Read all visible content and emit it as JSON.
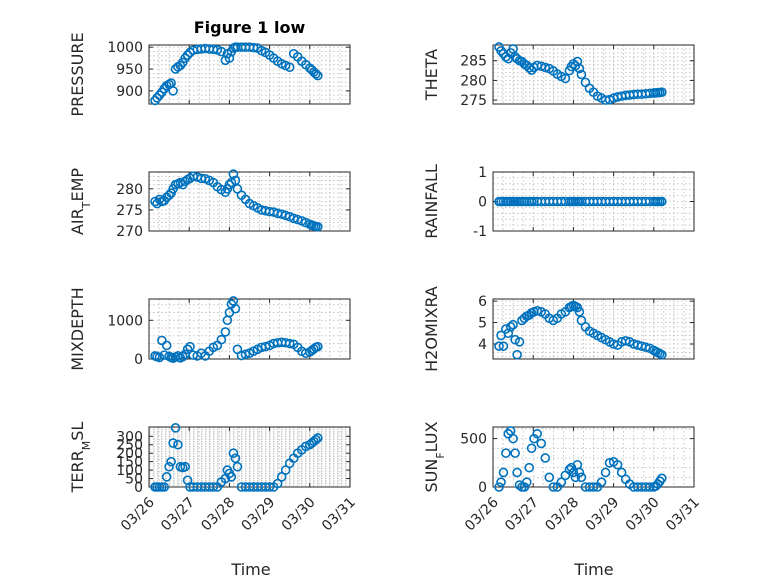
{
  "chart_data": [
    {
      "type": "scatter",
      "title": "Figure 1 low",
      "ylabel": "PRESSURE",
      "ylim": [
        870,
        1005
      ],
      "yticks": [
        900,
        950,
        1000
      ],
      "xlim": [
        0,
        5
      ],
      "xticks": [
        0,
        1,
        2,
        3,
        4,
        5
      ],
      "xticklabels": [
        "03/26",
        "03/27",
        "03/28",
        "03/29",
        "03/30",
        "03/31"
      ],
      "grid": true,
      "x": [
        0.15,
        0.2,
        0.26,
        0.32,
        0.38,
        0.44,
        0.5,
        0.55,
        0.6,
        0.66,
        0.72,
        0.78,
        0.84,
        0.9,
        0.96,
        1.02,
        1.1,
        1.2,
        1.3,
        1.4,
        1.5,
        1.6,
        1.7,
        1.8,
        1.9,
        1.95,
        2.0,
        2.05,
        2.1,
        2.15,
        2.2,
        2.3,
        2.4,
        2.5,
        2.6,
        2.7,
        2.8,
        2.9,
        3.0,
        3.1,
        3.2,
        3.3,
        3.4,
        3.5,
        3.6,
        3.7,
        3.8,
        3.9,
        4.0,
        4.05,
        4.1,
        4.15,
        4.2
      ],
      "values": [
        878,
        884,
        890,
        897,
        905,
        912,
        915,
        918,
        900,
        950,
        955,
        958,
        965,
        975,
        982,
        988,
        993,
        995,
        996,
        997,
        996,
        995,
        994,
        990,
        970,
        985,
        975,
        990,
        998,
        1000,
        1000,
        1000,
        1000,
        1000,
        999,
        998,
        992,
        988,
        982,
        975,
        968,
        962,
        958,
        954,
        985,
        978,
        968,
        960,
        952,
        948,
        943,
        939,
        935
      ],
      "color": "#0072bd"
    },
    {
      "type": "scatter",
      "title": "",
      "ylabel": "THETA",
      "ylim": [
        274,
        289
      ],
      "yticks": [
        275,
        280,
        285
      ],
      "xlim": [
        0,
        5
      ],
      "xticks": [
        0,
        1,
        2,
        3,
        4,
        5
      ],
      "xticklabels": [
        "03/26",
        "03/27",
        "03/28",
        "03/29",
        "03/30",
        "03/31"
      ],
      "grid": true,
      "x": [
        0.15,
        0.2,
        0.26,
        0.32,
        0.38,
        0.44,
        0.5,
        0.55,
        0.6,
        0.66,
        0.72,
        0.78,
        0.84,
        0.9,
        0.96,
        1.02,
        1.1,
        1.2,
        1.3,
        1.4,
        1.5,
        1.6,
        1.7,
        1.8,
        1.9,
        1.95,
        2.0,
        2.05,
        2.1,
        2.15,
        2.2,
        2.3,
        2.4,
        2.5,
        2.6,
        2.7,
        2.8,
        2.9,
        3.0,
        3.1,
        3.2,
        3.3,
        3.4,
        3.5,
        3.6,
        3.7,
        3.8,
        3.9,
        4.0,
        4.05,
        4.1,
        4.15,
        4.2
      ],
      "values": [
        288.5,
        287.5,
        286.8,
        286,
        285.5,
        287,
        288,
        286,
        285.5,
        285,
        284.8,
        284.2,
        283.8,
        283.2,
        282.6,
        283.3,
        283.8,
        283.6,
        283.3,
        283,
        282.4,
        281.6,
        281,
        280.5,
        282.5,
        283.5,
        284.2,
        283.7,
        284.8,
        283,
        281.5,
        279.5,
        278,
        277,
        276,
        275.5,
        275,
        275.1,
        275.5,
        275.8,
        276,
        276.2,
        276.3,
        276.4,
        276.5,
        276.5,
        276.6,
        276.7,
        276.8,
        276.8,
        276.9,
        276.9,
        277
      ],
      "color": "#0072bd"
    },
    {
      "type": "scatter",
      "title": "",
      "ylabel": "AIR_TEMP",
      "ylim": [
        270,
        284
      ],
      "yticks": [
        270,
        275,
        280
      ],
      "xlim": [
        0,
        5
      ],
      "xticks": [
        0,
        1,
        2,
        3,
        4,
        5
      ],
      "xticklabels": [
        "03/26",
        "03/27",
        "03/28",
        "03/29",
        "03/30",
        "03/31"
      ],
      "grid": true,
      "x": [
        0.15,
        0.2,
        0.26,
        0.32,
        0.38,
        0.44,
        0.5,
        0.55,
        0.6,
        0.66,
        0.72,
        0.78,
        0.84,
        0.9,
        0.96,
        1.02,
        1.1,
        1.2,
        1.3,
        1.4,
        1.5,
        1.6,
        1.7,
        1.8,
        1.9,
        1.95,
        2.0,
        2.05,
        2.1,
        2.15,
        2.2,
        2.3,
        2.4,
        2.5,
        2.6,
        2.7,
        2.8,
        2.9,
        3.0,
        3.1,
        3.2,
        3.3,
        3.4,
        3.5,
        3.6,
        3.7,
        3.8,
        3.9,
        4.0,
        4.05,
        4.1,
        4.15,
        4.2
      ],
      "values": [
        277,
        276.5,
        277.5,
        277,
        277.2,
        278,
        278.5,
        279,
        280,
        281,
        281.2,
        281.5,
        281,
        281.8,
        282.2,
        282.5,
        283,
        282.8,
        282.5,
        282.4,
        282,
        281.5,
        280.5,
        279.8,
        279.2,
        280,
        281,
        281.5,
        283.5,
        282,
        280,
        278.5,
        277.5,
        276.5,
        276,
        275.5,
        275,
        274.8,
        274.6,
        274.5,
        274.2,
        274,
        273.7,
        273.4,
        273,
        272.7,
        272.4,
        272,
        271.6,
        271.4,
        271.2,
        271.1,
        271
      ],
      "color": "#0072bd"
    },
    {
      "type": "scatter",
      "title": "",
      "ylabel": "RAINFALL",
      "ylim": [
        -1,
        1
      ],
      "yticks": [
        -1,
        0,
        1
      ],
      "xlim": [
        0,
        5
      ],
      "xticks": [
        0,
        1,
        2,
        3,
        4,
        5
      ],
      "xticklabels": [
        "03/26",
        "03/27",
        "03/28",
        "03/29",
        "03/30",
        "03/31"
      ],
      "grid": true,
      "x": [
        0.15,
        0.2,
        0.26,
        0.32,
        0.38,
        0.44,
        0.5,
        0.55,
        0.6,
        0.66,
        0.72,
        0.78,
        0.84,
        0.9,
        0.96,
        1.02,
        1.1,
        1.2,
        1.3,
        1.4,
        1.5,
        1.6,
        1.7,
        1.8,
        1.9,
        1.95,
        2.0,
        2.05,
        2.1,
        2.15,
        2.2,
        2.3,
        2.4,
        2.5,
        2.6,
        2.7,
        2.8,
        2.9,
        3.0,
        3.1,
        3.2,
        3.3,
        3.4,
        3.5,
        3.6,
        3.7,
        3.8,
        3.9,
        4.0,
        4.05,
        4.1,
        4.15,
        4.2
      ],
      "values": [
        0,
        0,
        0,
        0,
        0,
        0,
        0,
        0,
        0,
        0,
        0,
        0,
        0,
        0,
        0,
        0,
        0,
        0,
        0,
        0,
        0,
        0,
        0,
        0,
        0,
        0,
        0,
        0,
        0,
        0,
        0,
        0,
        0,
        0,
        0,
        0,
        0,
        0,
        0,
        0,
        0,
        0,
        0,
        0,
        0,
        0,
        0,
        0,
        0,
        0,
        0,
        0,
        0
      ],
      "color": "#0072bd"
    },
    {
      "type": "scatter",
      "title": "",
      "ylabel": "MIXDEPTH",
      "ylim": [
        0,
        1550
      ],
      "yticks": [
        0,
        1000
      ],
      "xlim": [
        0,
        5
      ],
      "xticks": [
        0,
        1,
        2,
        3,
        4,
        5
      ],
      "xticklabels": [
        "03/26",
        "03/27",
        "03/28",
        "03/29",
        "03/30",
        "03/31"
      ],
      "grid": true,
      "x": [
        0.15,
        0.2,
        0.26,
        0.32,
        0.38,
        0.44,
        0.5,
        0.55,
        0.6,
        0.66,
        0.72,
        0.78,
        0.84,
        0.9,
        0.96,
        1.02,
        1.1,
        1.2,
        1.3,
        1.4,
        1.5,
        1.6,
        1.7,
        1.8,
        1.9,
        1.95,
        2.0,
        2.05,
        2.1,
        2.15,
        2.2,
        2.3,
        2.4,
        2.5,
        2.6,
        2.7,
        2.8,
        2.9,
        3.0,
        3.1,
        3.2,
        3.3,
        3.4,
        3.5,
        3.6,
        3.7,
        3.8,
        3.9,
        4.0,
        4.05,
        4.1,
        4.15,
        4.2
      ],
      "values": [
        80,
        60,
        40,
        480,
        100,
        350,
        70,
        40,
        20,
        50,
        80,
        30,
        60,
        120,
        250,
        320,
        100,
        80,
        150,
        80,
        200,
        300,
        350,
        500,
        700,
        1000,
        1200,
        1420,
        1500,
        1300,
        250,
        90,
        120,
        150,
        200,
        250,
        300,
        320,
        350,
        400,
        420,
        430,
        420,
        400,
        380,
        300,
        200,
        150,
        180,
        220,
        260,
        300,
        320
      ],
      "color": "#0072bd"
    },
    {
      "type": "scatter",
      "title": "",
      "ylabel": "H2OMIXRA",
      "ylim": [
        3.3,
        6.1
      ],
      "yticks": [
        4,
        5,
        6
      ],
      "xlim": [
        0,
        5
      ],
      "xticks": [
        0,
        1,
        2,
        3,
        4,
        5
      ],
      "xticklabels": [
        "03/26",
        "03/27",
        "03/28",
        "03/29",
        "03/30",
        "03/31"
      ],
      "grid": true,
      "x": [
        0.15,
        0.2,
        0.26,
        0.32,
        0.38,
        0.44,
        0.5,
        0.55,
        0.6,
        0.66,
        0.72,
        0.78,
        0.84,
        0.9,
        0.96,
        1.02,
        1.1,
        1.2,
        1.3,
        1.4,
        1.5,
        1.6,
        1.7,
        1.8,
        1.9,
        1.95,
        2.0,
        2.05,
        2.1,
        2.15,
        2.2,
        2.3,
        2.4,
        2.5,
        2.6,
        2.7,
        2.8,
        2.9,
        3.0,
        3.1,
        3.2,
        3.3,
        3.4,
        3.5,
        3.6,
        3.7,
        3.8,
        3.9,
        4.0,
        4.05,
        4.1,
        4.15,
        4.2
      ],
      "values": [
        3.9,
        4.4,
        3.9,
        4.7,
        4.5,
        4.8,
        4.9,
        4.2,
        3.5,
        4.1,
        5.1,
        5.2,
        5.3,
        5.35,
        5.45,
        5.5,
        5.55,
        5.5,
        5.4,
        5.2,
        5.1,
        5.2,
        5.4,
        5.5,
        5.7,
        5.75,
        5.8,
        5.75,
        5.7,
        5.5,
        5.1,
        4.8,
        4.6,
        4.5,
        4.4,
        4.3,
        4.2,
        4.1,
        4.0,
        3.95,
        4.1,
        4.15,
        4.1,
        4.0,
        3.95,
        3.9,
        3.85,
        3.8,
        3.7,
        3.65,
        3.6,
        3.55,
        3.5
      ],
      "color": "#0072bd"
    },
    {
      "type": "scatter",
      "title": "",
      "ylabel": "TERR_MSL",
      "ylim": [
        0,
        355
      ],
      "yticks": [
        0,
        50,
        100,
        150,
        200,
        250,
        300
      ],
      "xlim": [
        0,
        5
      ],
      "xticks": [
        0,
        1,
        2,
        3,
        4,
        5
      ],
      "xticklabels": [
        "03/26",
        "03/27",
        "03/28",
        "03/29",
        "03/30",
        "03/31"
      ],
      "grid": true,
      "x": [
        0.15,
        0.2,
        0.26,
        0.32,
        0.38,
        0.44,
        0.5,
        0.55,
        0.6,
        0.66,
        0.72,
        0.78,
        0.84,
        0.9,
        0.96,
        1.02,
        1.1,
        1.2,
        1.3,
        1.4,
        1.5,
        1.6,
        1.7,
        1.8,
        1.9,
        1.95,
        2.0,
        2.05,
        2.1,
        2.15,
        2.2,
        2.3,
        2.4,
        2.5,
        2.6,
        2.7,
        2.8,
        2.9,
        3.0,
        3.1,
        3.2,
        3.3,
        3.4,
        3.5,
        3.6,
        3.7,
        3.8,
        3.9,
        4.0,
        4.05,
        4.1,
        4.15,
        4.2
      ],
      "values": [
        0,
        0,
        0,
        0,
        0,
        60,
        120,
        150,
        260,
        350,
        250,
        120,
        115,
        120,
        40,
        0,
        0,
        0,
        0,
        0,
        0,
        0,
        0,
        30,
        50,
        100,
        80,
        60,
        200,
        170,
        120,
        0,
        0,
        0,
        0,
        0,
        0,
        0,
        0,
        0,
        20,
        60,
        100,
        140,
        170,
        200,
        220,
        240,
        250,
        260,
        270,
        280,
        290
      ],
      "color": "#0072bd"
    },
    {
      "type": "scatter",
      "title": "",
      "ylabel": "SUN_FLUX",
      "ylim": [
        0,
        620
      ],
      "yticks": [
        0,
        500
      ],
      "xlim": [
        0,
        5
      ],
      "xticks": [
        0,
        1,
        2,
        3,
        4,
        5
      ],
      "xticklabels": [
        "03/26",
        "03/27",
        "03/28",
        "03/29",
        "03/30",
        "03/31"
      ],
      "grid": true,
      "x": [
        0.15,
        0.2,
        0.26,
        0.32,
        0.38,
        0.44,
        0.5,
        0.55,
        0.6,
        0.66,
        0.72,
        0.78,
        0.84,
        0.9,
        0.96,
        1.02,
        1.1,
        1.2,
        1.3,
        1.4,
        1.5,
        1.6,
        1.7,
        1.8,
        1.9,
        1.95,
        2.0,
        2.05,
        2.1,
        2.15,
        2.2,
        2.3,
        2.4,
        2.5,
        2.6,
        2.7,
        2.8,
        2.9,
        3.0,
        3.1,
        3.2,
        3.3,
        3.4,
        3.5,
        3.6,
        3.7,
        3.8,
        3.9,
        4.0,
        4.05,
        4.1,
        4.15,
        4.2
      ],
      "values": [
        0,
        50,
        150,
        350,
        550,
        580,
        500,
        350,
        150,
        20,
        0,
        0,
        50,
        200,
        400,
        500,
        550,
        450,
        300,
        100,
        0,
        0,
        50,
        120,
        180,
        200,
        150,
        100,
        230,
        150,
        100,
        0,
        0,
        0,
        0,
        50,
        150,
        250,
        260,
        230,
        150,
        80,
        30,
        0,
        0,
        0,
        0,
        0,
        0,
        10,
        30,
        60,
        90
      ],
      "color": "#0072bd"
    }
  ],
  "labels": {
    "xlabel_left": "Time",
    "xlabel_right": "Time"
  }
}
